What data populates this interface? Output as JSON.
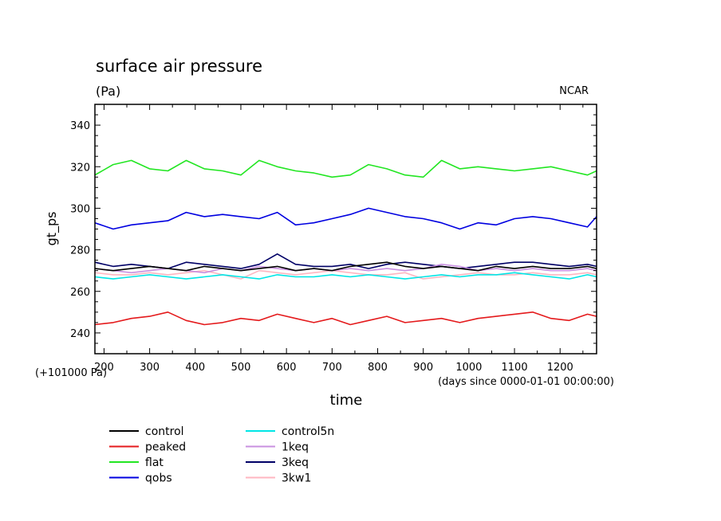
{
  "chart_data": {
    "type": "line",
    "title": "surface air pressure",
    "units": "(Pa)",
    "source": "NCAR",
    "ylabel": "gt_ps",
    "xlabel": "time",
    "x_offset_note": "(+101000 Pa)",
    "x_units_note": "(days since 0000-01-01 00:00:00)",
    "xlim": [
      180,
      1280
    ],
    "ylim": [
      230,
      350
    ],
    "xticks": [
      200,
      300,
      400,
      500,
      600,
      700,
      800,
      900,
      1000,
      1100,
      1200
    ],
    "yticks": [
      240,
      260,
      280,
      300,
      320,
      340
    ],
    "x": [
      180,
      220,
      260,
      300,
      340,
      380,
      420,
      460,
      500,
      540,
      580,
      620,
      660,
      700,
      740,
      780,
      820,
      860,
      900,
      940,
      980,
      1020,
      1060,
      1100,
      1140,
      1180,
      1220,
      1260,
      1280
    ],
    "series": [
      {
        "name": "control",
        "color": "#000000",
        "values": [
          271,
          270,
          271,
          272,
          271,
          270,
          272,
          271,
          270,
          271,
          272,
          270,
          271,
          270,
          272,
          273,
          274,
          272,
          271,
          272,
          271,
          270,
          272,
          271,
          272,
          271,
          271,
          272,
          271
        ]
      },
      {
        "name": "peaked",
        "color": "#e41a1c",
        "values": [
          244,
          245,
          247,
          248,
          250,
          246,
          244,
          245,
          247,
          246,
          249,
          247,
          245,
          247,
          244,
          246,
          248,
          245,
          246,
          247,
          245,
          247,
          248,
          249,
          250,
          247,
          246,
          249,
          248
        ]
      },
      {
        "name": "flat",
        "color": "#22e622",
        "values": [
          316,
          321,
          323,
          319,
          318,
          323,
          319,
          318,
          316,
          323,
          320,
          318,
          317,
          315,
          316,
          321,
          319,
          316,
          315,
          323,
          319,
          320,
          319,
          318,
          319,
          320,
          318,
          316,
          318
        ]
      },
      {
        "name": "qobs",
        "color": "#0000e0",
        "values": [
          293,
          290,
          292,
          293,
          294,
          298,
          296,
          297,
          296,
          295,
          298,
          292,
          293,
          295,
          297,
          300,
          298,
          296,
          295,
          293,
          290,
          293,
          292,
          295,
          296,
          295,
          293,
          291,
          296
        ]
      },
      {
        "name": "control5n",
        "color": "#00e6e6",
        "values": [
          267,
          266,
          267,
          268,
          267,
          266,
          267,
          268,
          267,
          266,
          268,
          267,
          267,
          268,
          267,
          268,
          267,
          266,
          267,
          268,
          267,
          268,
          268,
          269,
          268,
          267,
          266,
          268,
          267
        ]
      },
      {
        "name": "1keq",
        "color": "#c890e0",
        "values": [
          271,
          270,
          269,
          270,
          271,
          270,
          269,
          271,
          270,
          272,
          271,
          270,
          271,
          270,
          271,
          270,
          271,
          270,
          271,
          273,
          272,
          270,
          271,
          270,
          271,
          270,
          270,
          271,
          270
        ]
      },
      {
        "name": "3keq",
        "color": "#000066",
        "values": [
          274,
          272,
          273,
          272,
          271,
          274,
          273,
          272,
          271,
          273,
          278,
          273,
          272,
          272,
          273,
          271,
          273,
          274,
          273,
          272,
          271,
          272,
          273,
          274,
          274,
          273,
          272,
          273,
          272
        ]
      },
      {
        "name": "3kw1",
        "color": "#ffb6c1",
        "values": [
          269,
          268,
          268,
          269,
          268,
          269,
          270,
          268,
          266,
          270,
          269,
          268,
          269,
          270,
          269,
          268,
          268,
          269,
          266,
          267,
          268,
          269,
          268,
          268,
          269,
          268,
          268,
          269,
          268
        ]
      }
    ],
    "legend_placement": "bottom-left, two columns"
  }
}
